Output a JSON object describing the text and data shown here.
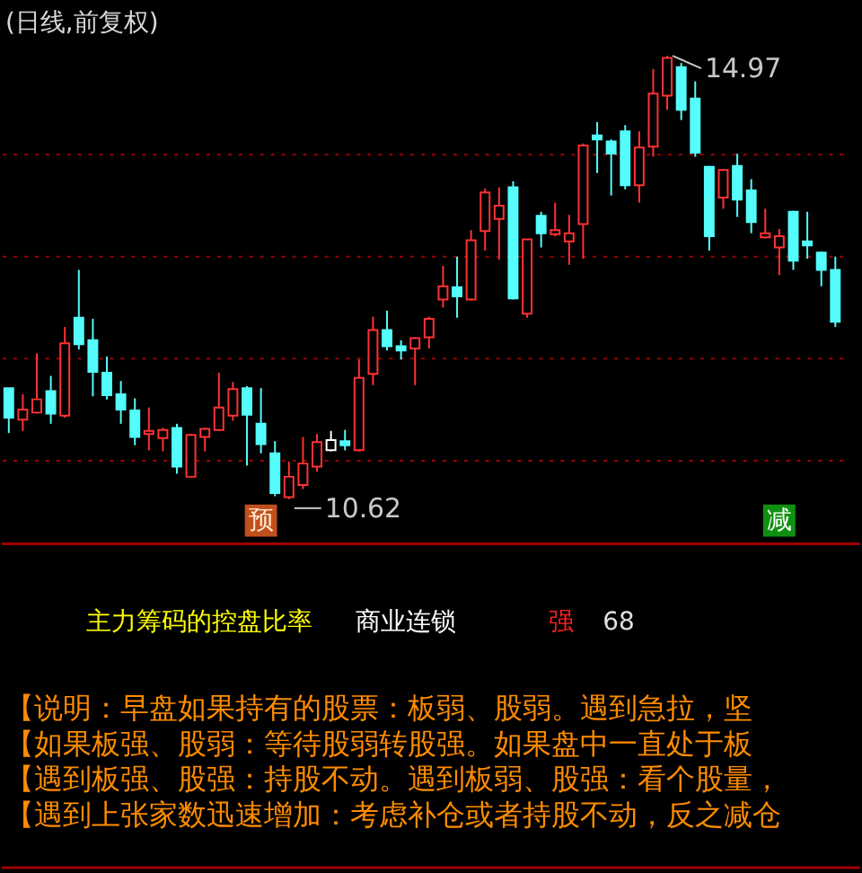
{
  "chart_data": {
    "type": "candlestick",
    "title": "(日线,前复权)",
    "categories": [
      null,
      null,
      null,
      null,
      null,
      null,
      null,
      null,
      null,
      null,
      null,
      null,
      null,
      null,
      null,
      null,
      null,
      null,
      null,
      null,
      null,
      null,
      null,
      null,
      null,
      null,
      null,
      null,
      null,
      null,
      null,
      null,
      null,
      null,
      null,
      null,
      null,
      null,
      null,
      null,
      null,
      null,
      null,
      null,
      null,
      null,
      null,
      null,
      null,
      null,
      null,
      null,
      null,
      null,
      null,
      null,
      null,
      null,
      null,
      null
    ],
    "ohlc": [
      [
        11.71,
        11.71,
        11.27,
        11.42
      ],
      [
        11.4,
        11.65,
        11.29,
        11.5
      ],
      [
        11.47,
        12.05,
        11.46,
        11.6
      ],
      [
        11.68,
        11.83,
        11.36,
        11.46
      ],
      [
        11.44,
        12.31,
        11.42,
        12.15
      ],
      [
        12.4,
        12.87,
        12.09,
        12.14
      ],
      [
        12.18,
        12.39,
        11.63,
        11.87
      ],
      [
        11.86,
        12.02,
        11.6,
        11.64
      ],
      [
        11.65,
        11.78,
        11.36,
        11.5
      ],
      [
        11.49,
        11.61,
        11.15,
        11.23
      ],
      [
        11.26,
        11.52,
        11.1,
        11.29
      ],
      [
        11.22,
        11.32,
        11.09,
        11.3
      ],
      [
        11.32,
        11.36,
        10.87,
        10.94
      ],
      [
        10.84,
        11.26,
        10.84,
        11.25
      ],
      [
        11.23,
        11.32,
        11.09,
        11.31
      ],
      [
        11.3,
        11.86,
        11.29,
        11.52
      ],
      [
        11.44,
        11.77,
        11.39,
        11.7
      ],
      [
        11.71,
        11.73,
        10.95,
        11.45
      ],
      [
        11.36,
        11.71,
        11.07,
        11.16
      ],
      [
        11.07,
        11.19,
        10.65,
        10.68
      ],
      [
        10.64,
        10.99,
        10.62,
        10.84
      ],
      [
        10.76,
        11.23,
        10.72,
        10.97
      ],
      [
        10.94,
        11.26,
        10.89,
        11.18
      ],
      [
        11.1,
        11.29,
        11.09,
        11.2
      ],
      [
        11.19,
        11.3,
        11.1,
        11.15
      ],
      [
        11.1,
        11.99,
        11.09,
        11.81
      ],
      [
        11.85,
        12.41,
        11.74,
        12.28
      ],
      [
        12.28,
        12.47,
        12.08,
        12.12
      ],
      [
        12.12,
        12.18,
        11.99,
        12.08
      ],
      [
        12.1,
        12.21,
        11.74,
        12.2
      ],
      [
        12.21,
        12.41,
        12.1,
        12.39
      ],
      [
        12.58,
        12.91,
        12.5,
        12.71
      ],
      [
        12.7,
        13.0,
        12.4,
        12.61
      ],
      [
        12.58,
        13.26,
        12.57,
        13.16
      ],
      [
        13.25,
        13.67,
        13.06,
        13.63
      ],
      [
        13.37,
        13.68,
        12.97,
        13.5
      ],
      [
        13.68,
        13.74,
        12.58,
        12.59
      ],
      [
        12.44,
        13.17,
        12.4,
        13.17
      ],
      [
        13.4,
        13.44,
        13.09,
        13.23
      ],
      [
        13.22,
        13.53,
        13.2,
        13.26
      ],
      [
        13.15,
        13.41,
        12.92,
        13.23
      ],
      [
        13.32,
        14.11,
        12.98,
        14.09
      ],
      [
        14.19,
        14.32,
        13.82,
        14.15
      ],
      [
        14.13,
        14.15,
        13.6,
        14.01
      ],
      [
        14.23,
        14.29,
        13.66,
        13.7
      ],
      [
        13.7,
        14.23,
        13.53,
        14.07
      ],
      [
        14.08,
        14.84,
        13.98,
        14.6
      ],
      [
        14.58,
        14.97,
        14.44,
        14.95
      ],
      [
        14.86,
        14.9,
        14.34,
        14.44
      ],
      [
        14.55,
        14.72,
        13.98,
        14.02
      ],
      [
        13.88,
        13.89,
        13.06,
        13.2
      ],
      [
        13.58,
        13.86,
        13.47,
        13.85
      ],
      [
        13.89,
        14.01,
        13.39,
        13.56
      ],
      [
        13.65,
        13.76,
        13.23,
        13.34
      ],
      [
        13.19,
        13.47,
        13.18,
        13.23
      ],
      [
        13.09,
        13.27,
        12.82,
        13.2
      ],
      [
        13.44,
        13.45,
        12.87,
        12.96
      ],
      [
        13.15,
        13.44,
        12.98,
        13.11
      ],
      [
        13.04,
        13.05,
        12.71,
        12.87
      ],
      [
        12.87,
        13.0,
        12.31,
        12.36
      ]
    ],
    "colors": [
      "#54fcfc",
      "#ff3232",
      "#ff3232",
      "#54fcfc",
      "#ff3232",
      "#54fcfc",
      "#54fcfc",
      "#54fcfc",
      "#54fcfc",
      "#54fcfc",
      "#ff3232",
      "#ff3232",
      "#54fcfc",
      "#ff3232",
      "#ff3232",
      "#ff3232",
      "#ff3232",
      "#54fcfc",
      "#54fcfc",
      "#54fcfc",
      "#ff3232",
      "#ff3232",
      "#ff3232",
      "#ffffff",
      "#54fcfc",
      "#ff3232",
      "#ff3232",
      "#54fcfc",
      "#54fcfc",
      "#ff3232",
      "#ff3232",
      "#ff3232",
      "#54fcfc",
      "#ff3232",
      "#ff3232",
      "#ff3232",
      "#54fcfc",
      "#ff3232",
      "#54fcfc",
      "#ff3232",
      "#ff3232",
      "#ff3232",
      "#54fcfc",
      "#54fcfc",
      "#54fcfc",
      "#ff3232",
      "#ff3232",
      "#ff3232",
      "#54fcfc",
      "#54fcfc",
      "#54fcfc",
      "#ff3232",
      "#54fcfc",
      "#54fcfc",
      "#ff3232",
      "#ff3232",
      "#54fcfc",
      "#54fcfc",
      "#54fcfc",
      "#54fcfc"
    ],
    "ylim": [
      10.2,
      15.5
    ],
    "yticks": [
      {
        "value": 11,
        "label": null
      },
      {
        "value": 12,
        "label": null
      },
      {
        "value": 13,
        "label": null
      },
      {
        "value": 14,
        "label": null
      }
    ],
    "grid": "y",
    "tick_labels": false,
    "annotations": [
      "14.97",
      "10.62",
      "预",
      "减",
      "主力筹码的控盘比率",
      "商业连锁",
      "强",
      "68",
      "【说明：早盘如果持有的股票：板弱、股弱。遇到急拉，坚",
      "【如果板强、股弱：等待股弱转股强。如果盘中一直处于板",
      "【遇到板强、股强：持股不动。遇到板弱、股强：看个股量，",
      "【遇到上张家数迅速增加：考虑补仓或者持股不动，反之减仓"
    ]
  }
}
